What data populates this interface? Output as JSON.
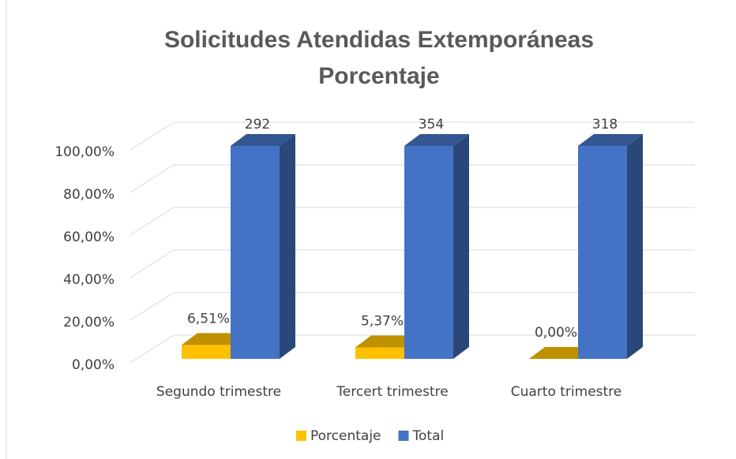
{
  "chart_data": {
    "type": "bar3d",
    "title": [
      "Solicitudes Atendidas Extemporáneas",
      "Porcentaje"
    ],
    "categories": [
      "Segundo trimestre",
      "Tercert trimestre",
      "Cuarto trimestre"
    ],
    "series": [
      {
        "name": "Porcentaje",
        "color": "#FFC000",
        "values": [
          6.51,
          5.37,
          0
        ],
        "value_labels": [
          "6,51%",
          "5,37%",
          "0,00%"
        ]
      },
      {
        "name": "Total",
        "color": "#4472C4",
        "values": [
          100,
          100,
          100
        ],
        "value_labels": [
          "292",
          "354",
          "318"
        ]
      }
    ],
    "ylim": [
      0,
      100
    ],
    "yticks": [
      {
        "value": 0,
        "label": "0,00%"
      },
      {
        "value": 20,
        "label": "20,00%"
      },
      {
        "value": 40,
        "label": "40,00%"
      },
      {
        "value": 60,
        "label": "60,00%"
      },
      {
        "value": 80,
        "label": "80,00%"
      },
      {
        "value": 100,
        "label": "100,00%"
      }
    ],
    "grid": true,
    "legend": "bottom"
  }
}
